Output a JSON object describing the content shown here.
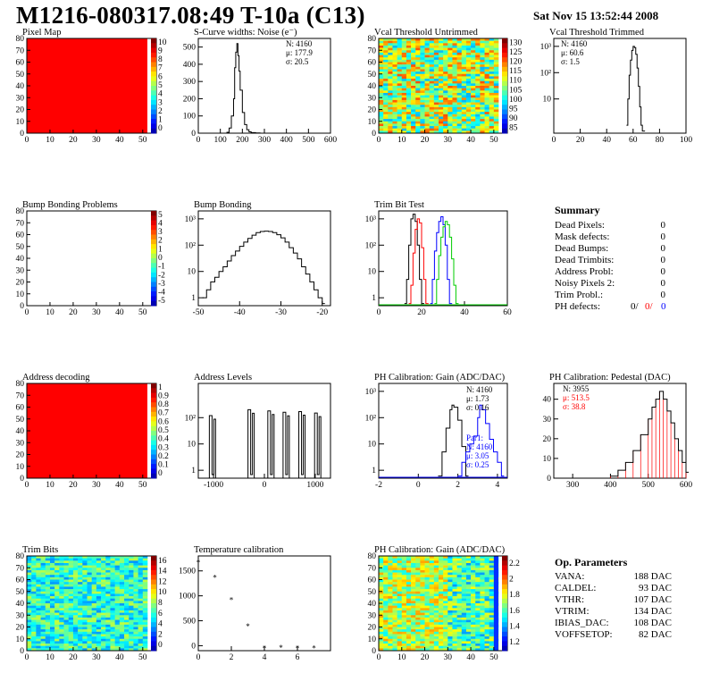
{
  "header": {
    "title": "M1216-080317.08:49 T-10a (C13)",
    "date": "Sat Nov 15 13:52:44 2008"
  },
  "panels": {
    "pixel_map": {
      "title": "Pixel Map"
    },
    "scurve": {
      "title": "S-Curve widths: Noise (e⁻)",
      "stats": [
        "N: 4160",
        "μ: 177.9",
        "σ: 20.5"
      ]
    },
    "vcal_untrimmed": {
      "title": "Vcal Threshold Untrimmed"
    },
    "vcal_trimmed": {
      "title": "Vcal Threshold Trimmed",
      "stats": [
        "N: 4160",
        "μ: 60.6",
        "σ:  1.5"
      ]
    },
    "bump_problems": {
      "title": "Bump Bonding Problems"
    },
    "bump_bonding": {
      "title": "Bump Bonding"
    },
    "trim_bit_test": {
      "title": "Trim Bit Test"
    },
    "address_decoding": {
      "title": "Address decoding"
    },
    "address_levels": {
      "title": "Address Levels"
    },
    "ph_gain": {
      "title": "PH Calibration: Gain (ADC/DAC)",
      "stats": [
        "N: 4160",
        "μ: 1.73",
        "σ: 0.16"
      ],
      "stats2": [
        "Par1:",
        "N: 4160",
        "μ: 3.05",
        "σ: 0.25"
      ]
    },
    "ph_pedestal": {
      "title": "PH Calibration: Pedestal (DAC)",
      "stats": [
        "N: 3955",
        "μ: 513.5",
        "σ: 38.8"
      ]
    },
    "trim_bits": {
      "title": "Trim Bits"
    },
    "temperature": {
      "title": "Temperature calibration"
    },
    "ph_gain_map": {
      "title": "PH Calibration: Gain (ADC/DAC)"
    }
  },
  "summary": {
    "heading": "Summary",
    "rows": [
      {
        "label": "Dead Pixels:",
        "value": "0"
      },
      {
        "label": "Mask defects:",
        "value": "0"
      },
      {
        "label": "Dead Bumps:",
        "value": "0"
      },
      {
        "label": "Dead Trimbits:",
        "value": "0"
      },
      {
        "label": "Address Probl:",
        "value": "0"
      },
      {
        "label": "Noisy Pixels 2:",
        "value": "0"
      },
      {
        "label": "Trim Probl.:",
        "value": "0"
      }
    ],
    "ph_defects": {
      "label": "PH defects:",
      "v1": "0/",
      "v2": "0/",
      "v3": "0"
    }
  },
  "op_params": {
    "heading": "Op. Parameters",
    "rows": [
      {
        "label": "VANA:",
        "value": "188 DAC"
      },
      {
        "label": "CALDEL:",
        "value": "93 DAC"
      },
      {
        "label": "VTHR:",
        "value": "107 DAC"
      },
      {
        "label": "VTRIM:",
        "value": "134 DAC"
      },
      {
        "label": "IBIAS_DAC:",
        "value": "108 DAC"
      },
      {
        "label": "VOFFSETOP:",
        "value": "82 DAC"
      }
    ]
  },
  "colors": {
    "red": "#ff0000",
    "blue": "#0000ff",
    "green": "#00cc00",
    "black": "#000000"
  },
  "chart_data": [
    {
      "type": "heatmap",
      "name": "Pixel Map",
      "xlim": [
        0,
        52
      ],
      "ylim": [
        0,
        80
      ],
      "uniform_color": "#ff0000",
      "xticks": [
        0,
        10,
        20,
        30,
        40,
        50
      ],
      "yticks": [
        0,
        10,
        20,
        30,
        40,
        50,
        60,
        70,
        80
      ],
      "zticks": [
        "10",
        "9",
        "8",
        "7",
        "6",
        "5",
        "4",
        "3",
        "2",
        "1",
        "0"
      ]
    },
    {
      "type": "line",
      "name": "S-Curve widths: Noise (e-)",
      "xlim": [
        0,
        600
      ],
      "ylim": [
        0,
        550
      ],
      "xticks": [
        0,
        100,
        200,
        300,
        400,
        500,
        600
      ],
      "yticks": [
        0,
        100,
        200,
        300,
        400,
        500
      ],
      "x": [
        120,
        130,
        140,
        150,
        160,
        165,
        170,
        175,
        180,
        185,
        190,
        200,
        210,
        220,
        230,
        240,
        260,
        280
      ],
      "y": [
        0,
        5,
        30,
        100,
        200,
        380,
        470,
        520,
        450,
        360,
        250,
        120,
        50,
        20,
        8,
        3,
        1,
        0
      ]
    },
    {
      "type": "heatmap",
      "name": "Vcal Threshold Untrimmed",
      "xlim": [
        0,
        52
      ],
      "ylim": [
        0,
        80
      ],
      "xticks": [
        0,
        10,
        20,
        30,
        40,
        50
      ],
      "yticks": [
        0,
        10,
        20,
        30,
        40,
        50,
        60,
        70,
        80
      ],
      "zticks": [
        "130",
        "125",
        "120",
        "115",
        "110",
        "105",
        "100",
        "95",
        "90",
        "85"
      ]
    },
    {
      "type": "line",
      "name": "Vcal Threshold Trimmed",
      "xlim": [
        0,
        100
      ],
      "ylim": [
        0.5,
        2000
      ],
      "log_y": true,
      "xticks": [
        0,
        20,
        40,
        60,
        80,
        100
      ],
      "yticks": [
        "10",
        "10²",
        "10³"
      ],
      "x": [
        55,
        56,
        57,
        58,
        59,
        60,
        61,
        62,
        63,
        64,
        65,
        66,
        67
      ],
      "y": [
        1,
        10,
        80,
        300,
        700,
        1000,
        900,
        500,
        150,
        30,
        5,
        1,
        0.6
      ]
    },
    {
      "type": "heatmap",
      "name": "Bump Bonding Problems",
      "xlim": [
        0,
        52
      ],
      "ylim": [
        0,
        80
      ],
      "empty": true,
      "xticks": [
        0,
        10,
        20,
        30,
        40,
        50
      ],
      "yticks": [
        0,
        10,
        20,
        30,
        40,
        50,
        60,
        70,
        80
      ],
      "zticks": [
        "5",
        "4",
        "3",
        "2",
        "1",
        "0",
        "-1",
        "-2",
        "-3",
        "-4",
        "-5"
      ]
    },
    {
      "type": "line",
      "name": "Bump Bonding",
      "xlim": [
        -50,
        -18
      ],
      "ylim": [
        0.5,
        2000
      ],
      "log_y": true,
      "xticks": [
        -50,
        -40,
        -30,
        -20
      ],
      "yticks": [
        "1",
        "10",
        "10²",
        "10³"
      ],
      "x": [
        -49,
        -48,
        -47,
        -46,
        -45,
        -44,
        -43,
        -42,
        -41,
        -40,
        -39,
        -38,
        -37,
        -36,
        -35,
        -34,
        -33,
        -32,
        -31,
        -30,
        -29,
        -28,
        -27,
        -26,
        -25,
        -24,
        -23,
        -22,
        -21,
        -20
      ],
      "y": [
        1,
        2,
        4,
        6,
        10,
        15,
        25,
        40,
        60,
        90,
        130,
        180,
        240,
        300,
        330,
        340,
        330,
        300,
        250,
        190,
        130,
        80,
        50,
        30,
        15,
        8,
        4,
        2,
        1,
        0.6
      ]
    },
    {
      "type": "line",
      "name": "Trim Bit Test",
      "xlim": [
        0,
        60
      ],
      "ylim": [
        0.5,
        2000
      ],
      "log_y": true,
      "xticks": [
        0,
        20,
        40,
        60
      ],
      "yticks": [
        "1",
        "10",
        "10²",
        "10³"
      ],
      "series": [
        {
          "color": "#000000",
          "x": [
            12,
            13,
            14,
            15,
            16,
            17,
            18,
            19,
            20
          ],
          "y": [
            0.6,
            5,
            100,
            1000,
            1500,
            800,
            100,
            5,
            0.6
          ]
        },
        {
          "color": "#ff0000",
          "x": [
            14,
            15,
            16,
            17,
            18,
            19,
            20,
            21,
            22
          ],
          "y": [
            0.6,
            3,
            50,
            400,
            1000,
            700,
            80,
            5,
            0.6
          ]
        },
        {
          "color": "#0000ff",
          "x": [
            24,
            25,
            26,
            27,
            28,
            29,
            30,
            31,
            32,
            33
          ],
          "y": [
            0.6,
            5,
            60,
            300,
            800,
            1200,
            600,
            100,
            5,
            0.6
          ]
        },
        {
          "color": "#00cc00",
          "x": [
            26,
            27,
            28,
            29,
            30,
            31,
            32,
            33,
            34,
            35,
            36
          ],
          "y": [
            0.6,
            5,
            40,
            200,
            500,
            800,
            600,
            200,
            30,
            3,
            0.6
          ]
        }
      ]
    },
    {
      "type": "heatmap",
      "name": "Address decoding",
      "xlim": [
        0,
        52
      ],
      "ylim": [
        0,
        80
      ],
      "uniform_color": "#ff0000",
      "xticks": [
        0,
        10,
        20,
        30,
        40,
        50
      ],
      "yticks": [
        0,
        10,
        20,
        30,
        40,
        50,
        60,
        70,
        80
      ],
      "zticks": [
        "1",
        "0.9",
        "0.8",
        "0.7",
        "0.6",
        "0.5",
        "0.4",
        "0.3",
        "0.2",
        "0.1",
        "0"
      ]
    },
    {
      "type": "bar",
      "name": "Address Levels",
      "xlim": [
        -1300,
        1300
      ],
      "ylim": [
        0.5,
        2000
      ],
      "log_y": true,
      "xticks": [
        -1000,
        0,
        1000
      ],
      "yticks": [
        "1",
        "10",
        "10²"
      ],
      "peaks": [
        {
          "x": -1030,
          "y": 120
        },
        {
          "x": -270,
          "y": 200
        },
        {
          "x": 120,
          "y": 180
        },
        {
          "x": 420,
          "y": 160
        },
        {
          "x": 730,
          "y": 170
        },
        {
          "x": 1040,
          "y": 150
        }
      ]
    },
    {
      "type": "line",
      "name": "PH Calibration: Gain (ADC/DAC)",
      "xlim": [
        -2,
        4.5
      ],
      "ylim": [
        0.5,
        2000
      ],
      "log_y": true,
      "xticks": [
        -2,
        0,
        2,
        4
      ],
      "yticks": [
        "1",
        "10",
        "10²",
        "10³"
      ],
      "series": [
        {
          "color": "#000000",
          "x": [
            1,
            1.2,
            1.4,
            1.6,
            1.7,
            1.8,
            2,
            2.2,
            2.4
          ],
          "y": [
            0.6,
            5,
            40,
            200,
            300,
            250,
            80,
            8,
            0.6
          ]
        },
        {
          "color": "#0000ff",
          "x": [
            2,
            2.2,
            2.4,
            2.6,
            2.8,
            3,
            3.1,
            3.2,
            3.4,
            3.6,
            3.8,
            4,
            4.2
          ],
          "y": [
            0.6,
            2,
            5,
            10,
            20,
            100,
            300,
            200,
            60,
            15,
            5,
            2,
            0.6
          ]
        }
      ]
    },
    {
      "type": "bar",
      "name": "PH Calibration: Pedestal (DAC)",
      "xlim": [
        250,
        600
      ],
      "ylim": [
        0,
        48
      ],
      "xticks": [
        300,
        400,
        500,
        600
      ],
      "yticks": [
        0,
        10,
        20,
        30,
        40
      ],
      "x": [
        400,
        420,
        440,
        460,
        480,
        500,
        510,
        520,
        530,
        540,
        550,
        560,
        570,
        580,
        590,
        600
      ],
      "y": [
        1,
        4,
        8,
        14,
        22,
        30,
        36,
        40,
        44,
        40,
        34,
        28,
        20,
        14,
        8,
        3
      ]
    },
    {
      "type": "heatmap",
      "name": "Trim Bits",
      "xlim": [
        0,
        52
      ],
      "ylim": [
        0,
        80
      ],
      "xticks": [
        0,
        10,
        20,
        30,
        40,
        50
      ],
      "yticks": [
        0,
        10,
        20,
        30,
        40,
        50,
        60,
        70,
        80
      ],
      "zticks": [
        "16",
        "14",
        "12",
        "10",
        "8",
        "6",
        "4",
        "2",
        "0"
      ]
    },
    {
      "type": "scatter",
      "name": "Temperature calibration",
      "xlim": [
        0,
        8
      ],
      "ylim": [
        -100,
        1800
      ],
      "xticks": [
        0,
        2,
        4,
        6
      ],
      "yticks": [
        0,
        500,
        1000,
        1500
      ],
      "x": [
        0,
        1,
        2,
        3,
        4,
        5,
        6,
        7
      ],
      "y": [
        1680,
        1380,
        930,
        400,
        -40,
        -30,
        -40,
        -40
      ]
    },
    {
      "type": "heatmap",
      "name": "PH Calibration: Gain (ADC/DAC) map",
      "xlim": [
        0,
        52
      ],
      "ylim": [
        0,
        80
      ],
      "xticks": [
        0,
        10,
        20,
        30,
        40,
        50
      ],
      "yticks": [
        0,
        10,
        20,
        30,
        40,
        50,
        60,
        70,
        80
      ],
      "zticks": [
        "2.2",
        "2",
        "1.8",
        "1.6",
        "1.4",
        "1.2"
      ]
    }
  ]
}
